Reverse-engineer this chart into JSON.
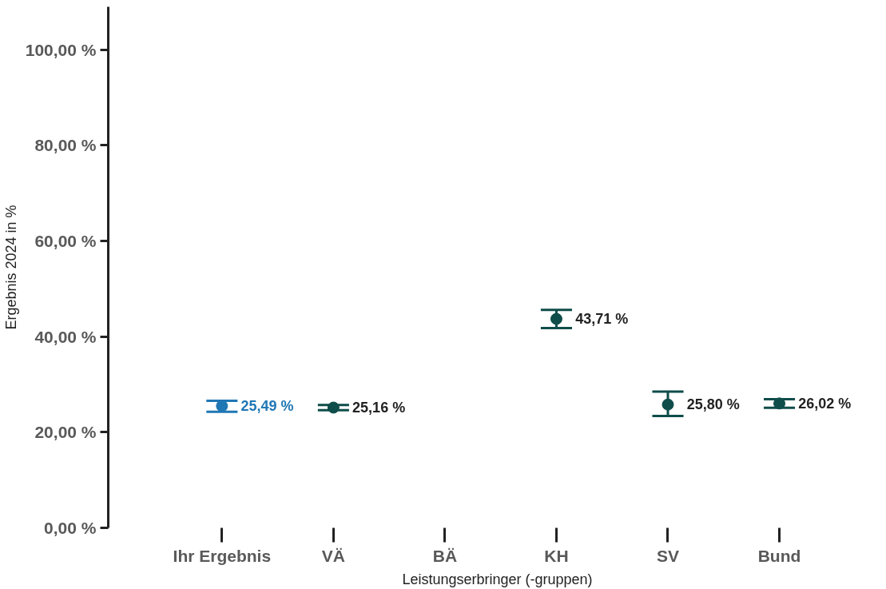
{
  "chart_data": {
    "type": "scatter",
    "xlabel": "Leistungserbringer (-gruppen)",
    "ylabel": "Ergebnis 2024 in %",
    "categories": [
      "Ihr Ergebnis",
      "VÄ",
      "BÄ",
      "KH",
      "SV",
      "Bund"
    ],
    "values": [
      25.49,
      25.16,
      null,
      43.71,
      25.8,
      26.02
    ],
    "colors": [
      "#1f77b4",
      "#0f4d4a",
      "#0f4d4a",
      "#0f4d4a",
      "#0f4d4a",
      "#0f4d4a"
    ],
    "errors": [
      [
        24.3,
        26.6
      ],
      [
        24.6,
        25.7
      ],
      null,
      [
        41.8,
        45.6
      ],
      [
        23.4,
        28.5
      ],
      [
        25.1,
        26.9
      ]
    ],
    "value_labels": [
      "25,49 %",
      "25,16 %",
      null,
      "43,71 %",
      "25,80 %",
      "26,02 %"
    ],
    "ylim": [
      0,
      109
    ],
    "yticks": [
      {
        "value": 0,
        "label": "0,00 %"
      },
      {
        "value": 20,
        "label": "20,00 %"
      },
      {
        "value": 40,
        "label": "40,00 %"
      },
      {
        "value": 60,
        "label": "60,00 %"
      },
      {
        "value": 80,
        "label": "80,00 %"
      },
      {
        "value": 100,
        "label": "100,00 %"
      }
    ],
    "marker": "circle",
    "grid": false
  }
}
